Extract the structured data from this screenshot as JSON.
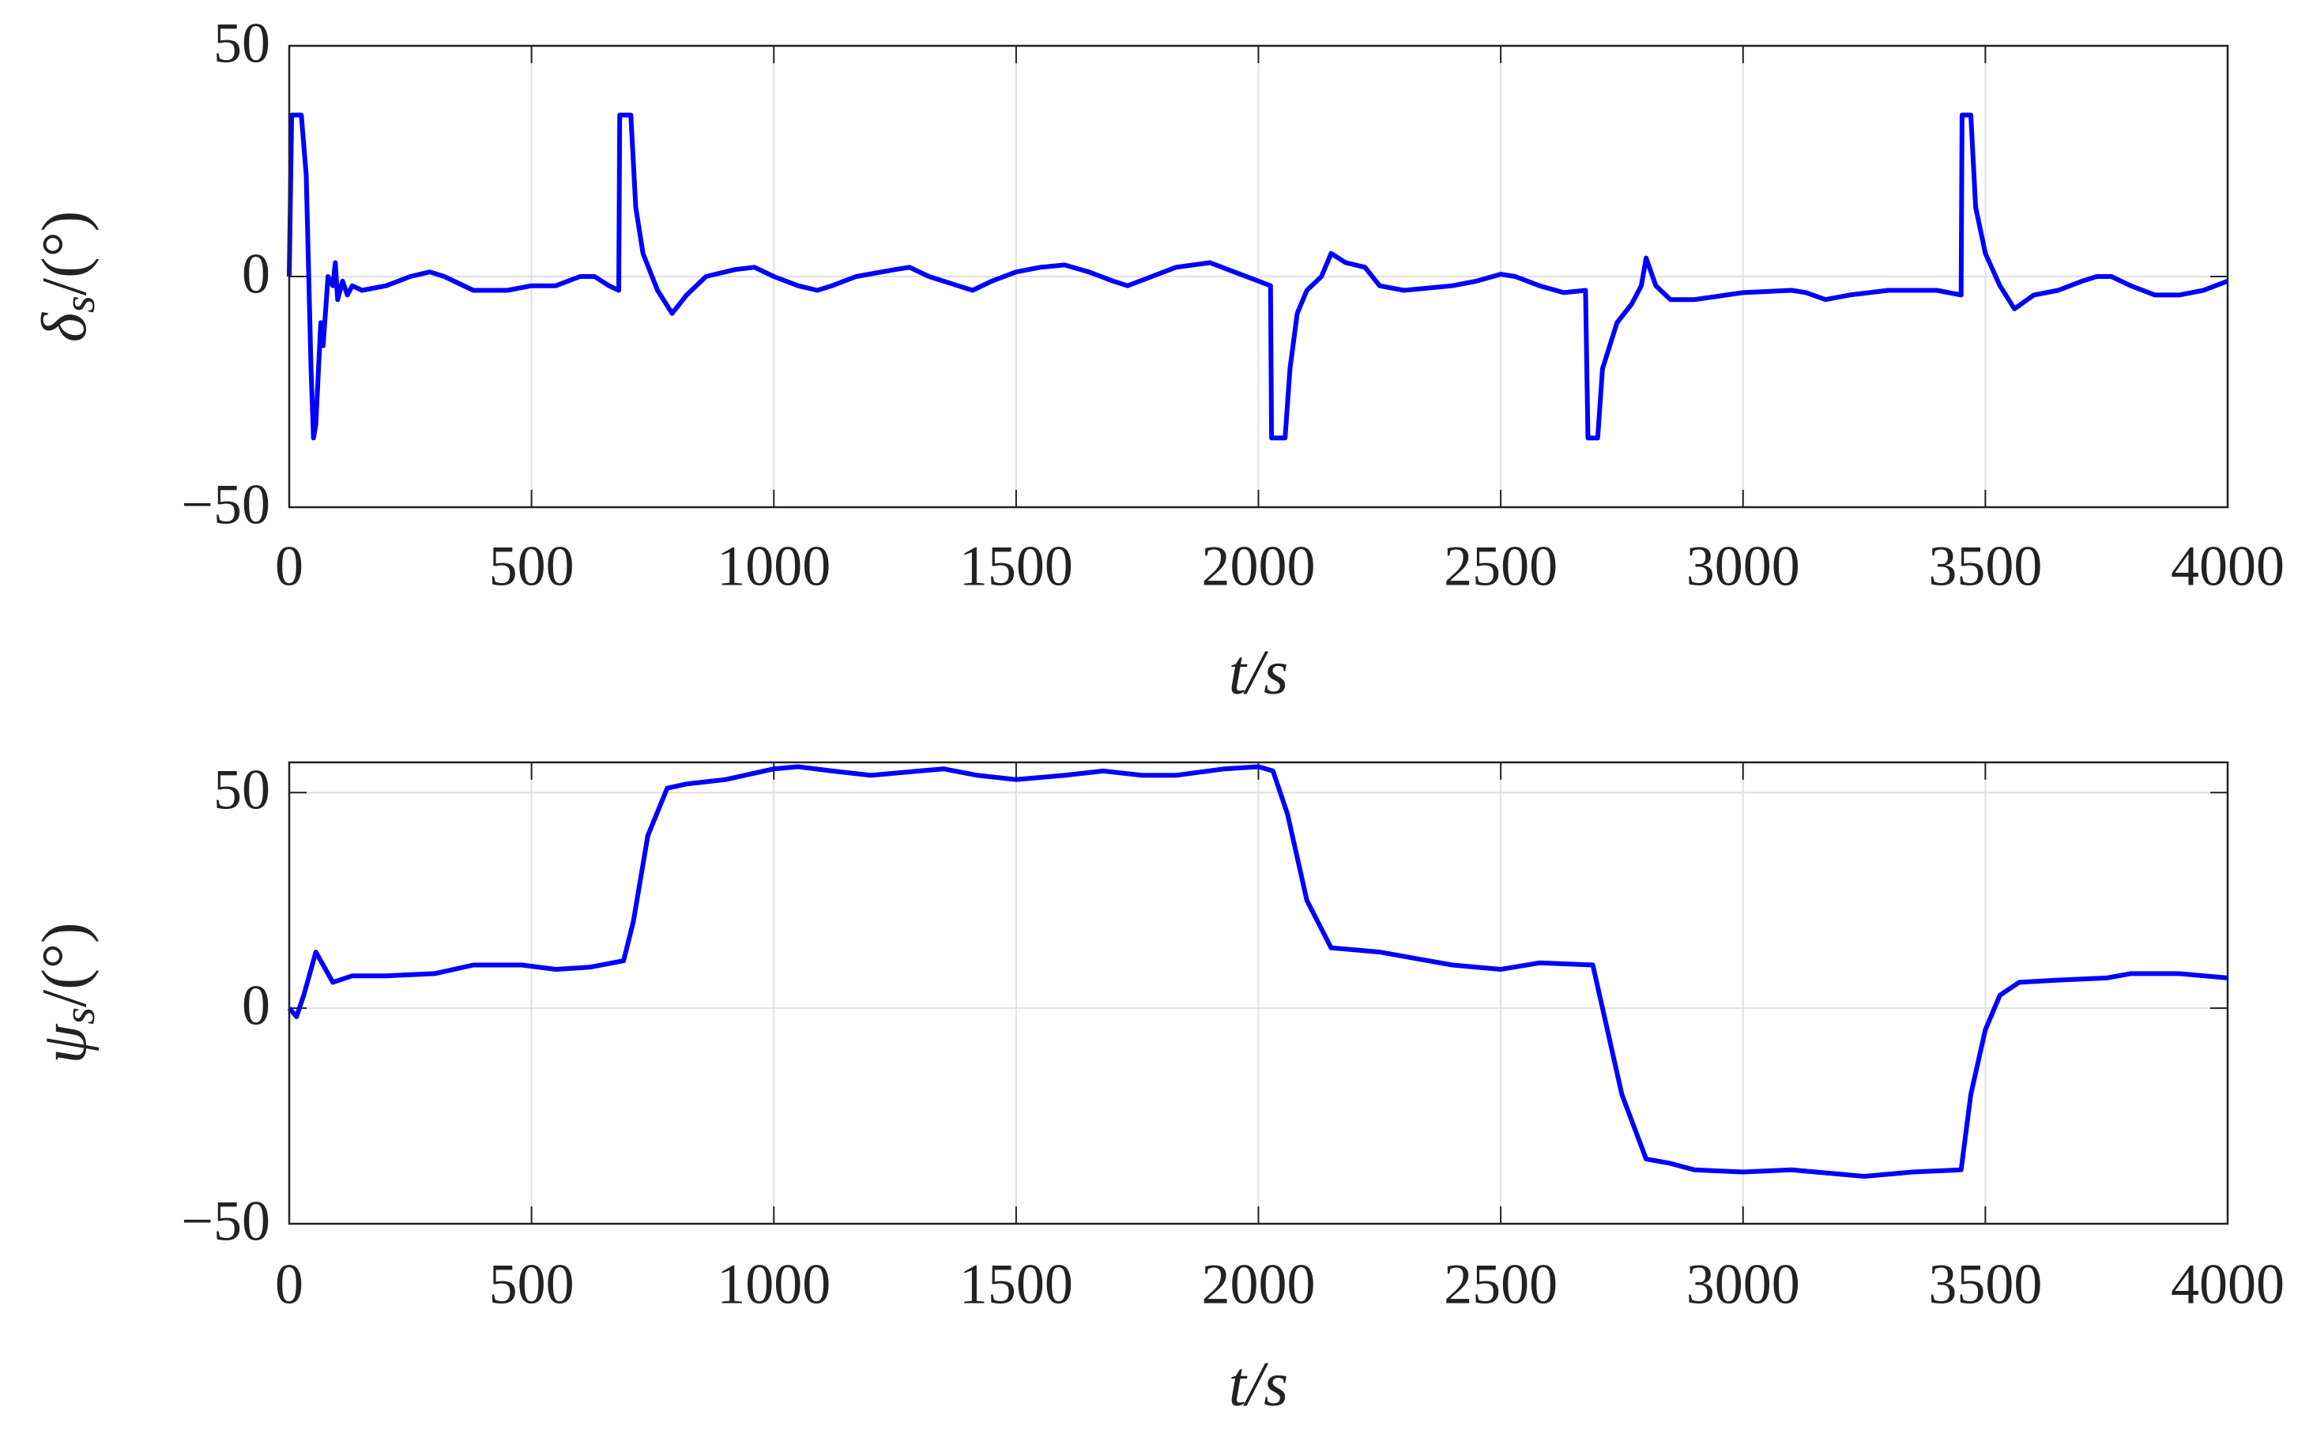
{
  "chart_data": [
    {
      "type": "line",
      "ylabel": "δ",
      "ylabel_subscript": "s",
      "ylabel_unit": "/(°)",
      "xlabel": "t/s",
      "x": [
        0,
        5,
        25,
        35,
        45,
        50,
        55,
        65,
        70,
        80,
        90,
        95,
        100,
        110,
        120,
        130,
        150,
        200,
        250,
        290,
        320,
        380,
        450,
        500,
        550,
        600,
        630,
        660,
        680,
        682,
        705,
        715,
        730,
        760,
        790,
        820,
        860,
        920,
        960,
        1000,
        1050,
        1090,
        1120,
        1170,
        1250,
        1280,
        1320,
        1380,
        1410,
        1450,
        1500,
        1550,
        1600,
        1650,
        1700,
        1730,
        1780,
        1830,
        1900,
        1950,
        2000,
        2025,
        2027,
        2055,
        2065,
        2080,
        2100,
        2130,
        2150,
        2180,
        2220,
        2250,
        2300,
        2400,
        2450,
        2500,
        2530,
        2580,
        2630,
        2675,
        2680,
        2700,
        2710,
        2740,
        2770,
        2790,
        2800,
        2820,
        2850,
        2900,
        3000,
        3100,
        3130,
        3170,
        3220,
        3300,
        3400,
        3450,
        3452,
        3470,
        3480,
        3500,
        3530,
        3560,
        3600,
        3650,
        3700,
        3730,
        3760,
        3800,
        3850,
        3900,
        3950,
        4000
      ],
      "series": [
        {
          "color": "#0000ff",
          "values": [
            0,
            35,
            35,
            22,
            -20,
            -35,
            -32,
            -10,
            -15,
            0,
            -2,
            3,
            -5,
            -1,
            -4,
            -2,
            -3,
            -2,
            0,
            1,
            0,
            -3,
            -3,
            -2,
            -2,
            0,
            0,
            -2,
            -3,
            35,
            35,
            15,
            5,
            -3,
            -8,
            -4,
            0,
            1.5,
            2,
            0,
            -2,
            -3,
            -2,
            0,
            1.5,
            2,
            0,
            -2,
            -3,
            -1,
            1,
            2,
            2.5,
            1,
            -1,
            -2,
            0,
            2,
            3,
            1,
            -1,
            -2,
            -35,
            -35,
            -20,
            -8,
            -3,
            0,
            5,
            3,
            2,
            -2,
            -3,
            -2,
            -1,
            0.5,
            0,
            -2,
            -3.5,
            -3,
            -35,
            -35,
            -20,
            -10,
            -6,
            -2,
            4,
            -2,
            -5,
            -5,
            -3.5,
            -3,
            -3.5,
            -5,
            -4,
            -3,
            -3,
            -4,
            35,
            35,
            15,
            5,
            -2,
            -7,
            -4,
            -3,
            -1,
            0,
            0,
            -2,
            -4,
            -4,
            -3,
            -1
          ]
        }
      ],
      "xlim": [
        0,
        4000
      ],
      "xticks": [
        0,
        500,
        1000,
        1500,
        2000,
        2500,
        3000,
        3500,
        4000
      ],
      "ylim": [
        -50,
        50
      ],
      "yticks": [
        {
          "value": -50,
          "label": "−50"
        },
        0,
        50
      ],
      "grid": true
    },
    {
      "type": "line",
      "ylabel": "ψ",
      "ylabel_subscript": "s",
      "ylabel_unit": "/(°)",
      "xlabel": "t/s",
      "x": [
        0,
        15,
        30,
        55,
        70,
        90,
        130,
        200,
        300,
        380,
        480,
        550,
        620,
        690,
        710,
        740,
        780,
        820,
        900,
        1000,
        1050,
        1120,
        1200,
        1300,
        1350,
        1420,
        1500,
        1600,
        1680,
        1760,
        1830,
        1930,
        2000,
        2030,
        2060,
        2100,
        2150,
        2200,
        2250,
        2300,
        2400,
        2500,
        2580,
        2690,
        2710,
        2750,
        2800,
        2850,
        2900,
        3000,
        3100,
        3150,
        3250,
        3350,
        3450,
        3470,
        3500,
        3530,
        3570,
        3650,
        3750,
        3800,
        3900,
        4000
      ],
      "series": [
        {
          "color": "#0000ff",
          "values": [
            0,
            -2,
            3,
            13,
            10,
            6,
            7.5,
            7.5,
            8,
            10,
            10,
            9,
            9.5,
            11,
            20,
            40,
            51,
            52,
            53,
            55.5,
            56,
            55,
            54,
            55,
            55.5,
            54,
            53,
            54,
            55,
            54,
            54,
            55.5,
            56,
            55,
            45,
            25,
            14,
            13.5,
            13,
            12,
            10,
            9,
            10.5,
            10,
            0,
            -20,
            -35,
            -36,
            -37.5,
            -38,
            -37.5,
            -38,
            -39,
            -38,
            -37.5,
            -20,
            -5,
            3,
            6,
            6.5,
            7,
            8,
            8,
            7
          ]
        }
      ],
      "xlim": [
        0,
        4000
      ],
      "xticks": [
        0,
        500,
        1000,
        1500,
        2000,
        2500,
        3000,
        3500,
        4000
      ],
      "ylim": [
        -50,
        57
      ],
      "yticks": [
        {
          "value": -50,
          "label": "−50"
        },
        0,
        50
      ],
      "grid": true
    }
  ]
}
